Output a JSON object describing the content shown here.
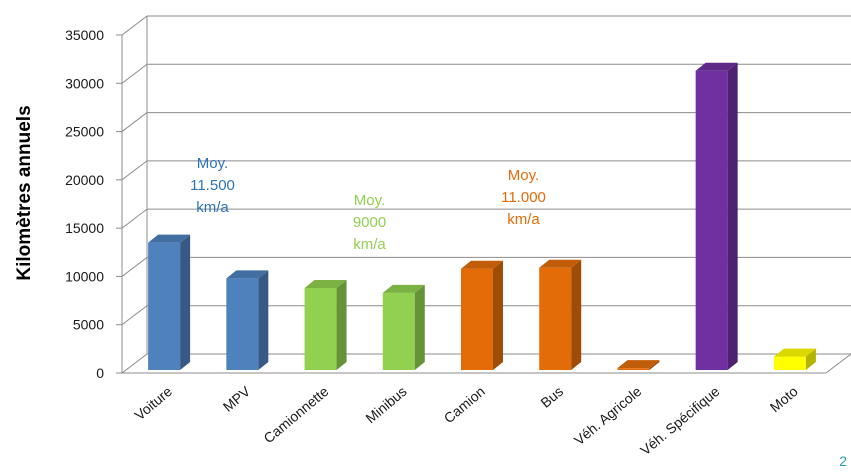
{
  "chart_data": {
    "type": "bar",
    "title": "",
    "xlabel": "",
    "ylabel": "Kilomètres annuels",
    "ylim": [
      0,
      35000
    ],
    "yticks": [
      0,
      5000,
      10000,
      15000,
      20000,
      25000,
      30000,
      35000
    ],
    "ytick_labels": [
      "0",
      "5000",
      "10000",
      "15000",
      "20000",
      "25000",
      "30000",
      "35000"
    ],
    "grid": true,
    "categories": [
      "Voiture",
      "MPV",
      "Camionnette",
      "Minibus",
      "Camion",
      "Bus",
      "Véh. Agricole",
      "Véh. Spécifique",
      "Moto"
    ],
    "values": [
      13500,
      9800,
      8800,
      8300,
      10800,
      10900,
      500,
      31300,
      1700
    ],
    "colors": [
      "#4f81bd",
      "#4f81bd",
      "#92d050",
      "#92d050",
      "#e36c09",
      "#e36c09",
      "#e36c09",
      "#7030a0",
      "#ffff00"
    ],
    "annotations": [
      {
        "lines": [
          "Moy.",
          "11.500",
          "km/a"
        ],
        "color": "#2e75b6"
      },
      {
        "lines": [
          "Moy.",
          "9000",
          "km/a"
        ],
        "color": "#92d050"
      },
      {
        "lines": [
          "Moy.",
          "11.000",
          "km/a"
        ],
        "color": "#e36c09"
      }
    ]
  },
  "page_number": "2"
}
